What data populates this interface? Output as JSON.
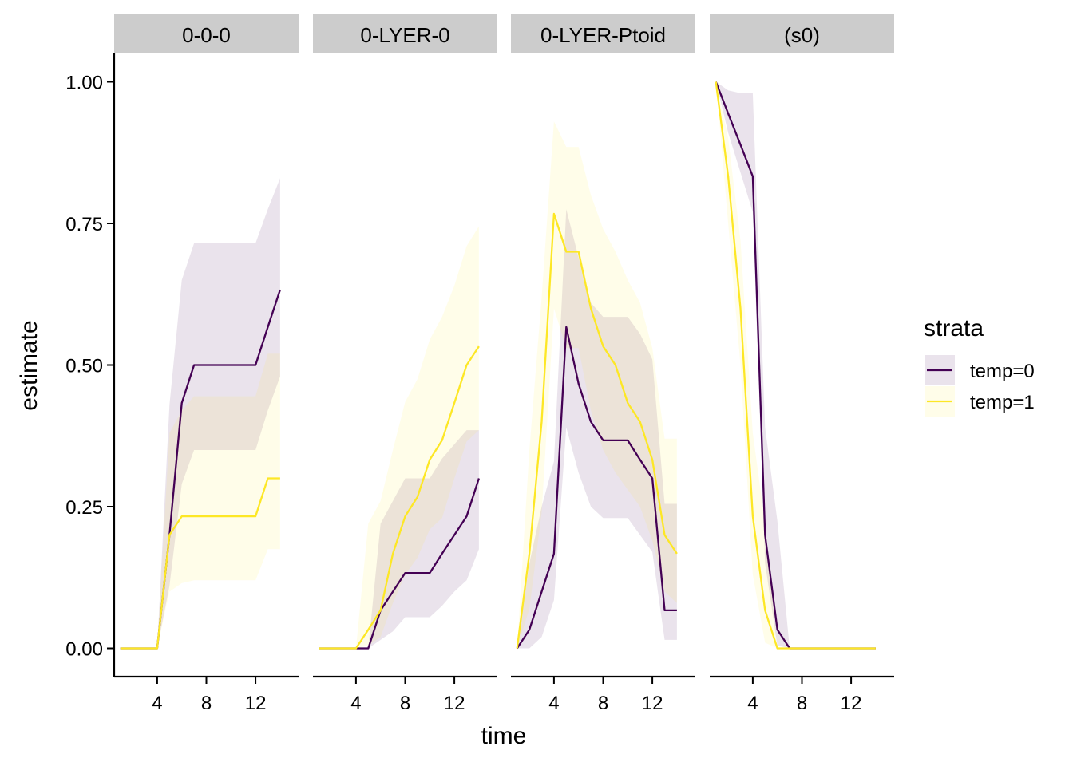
{
  "chart_data": {
    "type": "line",
    "xlabel": "time",
    "ylabel": "estimate",
    "xlim": [
      0.5,
      15.5
    ],
    "ylim": [
      -0.05,
      1.05
    ],
    "x_ticks": [
      4,
      8,
      12
    ],
    "x_tick_labels": [
      "4",
      "8",
      "12"
    ],
    "y_ticks": [
      0,
      0.25,
      0.5,
      0.75,
      1.0
    ],
    "y_tick_labels": [
      "0.00",
      "0.25",
      "0.50",
      "0.75",
      "1.00"
    ],
    "grid": false,
    "colors": {
      "temp0": "#440154",
      "temp1": "#FDE725",
      "strip_bg": "#CCCCCC"
    },
    "legend": {
      "title": "strata",
      "position": "right",
      "entries": [
        "temp=0",
        "temp=1"
      ]
    },
    "panels": [
      {
        "title": "0-0-0",
        "series": [
          {
            "name": "temp=0",
            "x": [
              1,
              2,
              3,
              4,
              5,
              6,
              7,
              8,
              9,
              10,
              11,
              12,
              13,
              14
            ],
            "y": [
              0,
              0,
              0,
              0,
              0.2,
              0.433,
              0.5,
              0.5,
              0.5,
              0.5,
              0.5,
              0.5,
              0.567,
              0.633
            ],
            "lower": [
              0,
              0,
              0,
              0,
              0.11,
              0.29,
              0.35,
              0.35,
              0.35,
              0.35,
              0.35,
              0.35,
              0.42,
              0.48
            ],
            "upper": [
              0,
              0,
              0,
              0,
              0.43,
              0.65,
              0.715,
              0.715,
              0.715,
              0.715,
              0.715,
              0.715,
              0.775,
              0.83
            ]
          },
          {
            "name": "temp=1",
            "x": [
              1,
              2,
              3,
              4,
              5,
              6,
              7,
              8,
              9,
              10,
              11,
              12,
              13,
              14
            ],
            "y": [
              0,
              0,
              0,
              0,
              0.2,
              0.233,
              0.233,
              0.233,
              0.233,
              0.233,
              0.233,
              0.233,
              0.3,
              0.3
            ],
            "lower": [
              0,
              0,
              0,
              0,
              0.1,
              0.115,
              0.12,
              0.12,
              0.12,
              0.12,
              0.12,
              0.12,
              0.175,
              0.175
            ],
            "upper": [
              0,
              0,
              0,
              0,
              0.38,
              0.42,
              0.445,
              0.445,
              0.445,
              0.445,
              0.445,
              0.445,
              0.52,
              0.52
            ]
          }
        ]
      },
      {
        "title": "0-LYER-0",
        "series": [
          {
            "name": "temp=0",
            "x": [
              1,
              2,
              3,
              4,
              5,
              6,
              7,
              8,
              9,
              10,
              11,
              12,
              13,
              14
            ],
            "y": [
              0,
              0,
              0,
              0,
              0,
              0.067,
              0.1,
              0.133,
              0.133,
              0.133,
              0.167,
              0.2,
              0.233,
              0.3
            ],
            "lower": [
              0,
              0,
              0,
              0,
              0,
              0.015,
              0.03,
              0.055,
              0.055,
              0.055,
              0.075,
              0.1,
              0.12,
              0.175
            ],
            "upper": [
              0,
              0,
              0,
              0,
              0,
              0.22,
              0.26,
              0.3,
              0.3,
              0.3,
              0.335,
              0.36,
              0.385,
              0.385
            ]
          },
          {
            "name": "temp=1",
            "x": [
              1,
              2,
              3,
              4,
              5,
              6,
              7,
              8,
              9,
              10,
              11,
              12,
              13,
              14
            ],
            "y": [
              0,
              0,
              0,
              0,
              0.033,
              0.067,
              0.167,
              0.233,
              0.267,
              0.333,
              0.367,
              0.433,
              0.5,
              0.533
            ],
            "lower": [
              0,
              0,
              0,
              0,
              0.005,
              0.02,
              0.08,
              0.13,
              0.16,
              0.21,
              0.23,
              0.3,
              0.365,
              0.385
            ],
            "upper": [
              0,
              0,
              0,
              0,
              0.22,
              0.26,
              0.35,
              0.435,
              0.475,
              0.545,
              0.585,
              0.64,
              0.71,
              0.745
            ]
          }
        ]
      },
      {
        "title": "0-LYER-Ptoid",
        "series": [
          {
            "name": "temp=0",
            "x": [
              1,
              2,
              3,
              4,
              5,
              6,
              7,
              8,
              9,
              10,
              11,
              12,
              13,
              14
            ],
            "y": [
              0,
              0.033,
              0.1,
              0.167,
              0.567,
              0.467,
              0.4,
              0.367,
              0.367,
              0.367,
              0.333,
              0.3,
              0.067,
              0.067
            ],
            "lower": [
              0,
              0,
              0.02,
              0.085,
              0.39,
              0.31,
              0.25,
              0.23,
              0.23,
              0.23,
              0.2,
              0.17,
              0.015,
              0.015
            ],
            "upper": [
              0,
              0.15,
              0.25,
              0.33,
              0.775,
              0.69,
              0.61,
              0.585,
              0.585,
              0.585,
              0.555,
              0.51,
              0.255,
              0.255
            ]
          },
          {
            "name": "temp=1",
            "x": [
              1,
              2,
              3,
              4,
              5,
              6,
              7,
              8,
              9,
              10,
              11,
              12,
              13,
              14
            ],
            "y": [
              0,
              0.167,
              0.4,
              0.767,
              0.7,
              0.7,
              0.6,
              0.533,
              0.5,
              0.433,
              0.4,
              0.333,
              0.2,
              0.167
            ],
            "lower": [
              0,
              0.07,
              0.24,
              0.6,
              0.53,
              0.53,
              0.42,
              0.35,
              0.31,
              0.28,
              0.25,
              0.19,
              0.1,
              0.08
            ],
            "upper": [
              0,
              0.35,
              0.62,
              0.93,
              0.885,
              0.885,
              0.8,
              0.74,
              0.7,
              0.65,
              0.61,
              0.53,
              0.37,
              0.37
            ]
          }
        ]
      },
      {
        "title": "(s0)",
        "series": [
          {
            "name": "temp=0",
            "x": [
              1,
              2,
              3,
              4,
              5,
              6,
              7,
              8,
              9,
              10,
              11,
              12,
              13,
              14
            ],
            "y": [
              1.0,
              0.944,
              0.889,
              0.833,
              0.2,
              0.033,
              0,
              0,
              0,
              0,
              0,
              0,
              0,
              0
            ],
            "lower": [
              1.0,
              0.91,
              0.84,
              0.77,
              0.15,
              0.005,
              0,
              0,
              0,
              0,
              0,
              0,
              0,
              0
            ],
            "upper": [
              1.0,
              0.985,
              0.98,
              0.98,
              0.39,
              0.225,
              0,
              0,
              0,
              0,
              0,
              0,
              0,
              0
            ]
          },
          {
            "name": "temp=1",
            "x": [
              1,
              2,
              3,
              4,
              5,
              6,
              7,
              8,
              9,
              10,
              11,
              12,
              13,
              14
            ],
            "y": [
              1.0,
              0.833,
              0.6,
              0.233,
              0.067,
              0,
              0,
              0,
              0,
              0,
              0,
              0,
              0,
              0
            ],
            "lower": [
              1.0,
              0.75,
              0.5,
              0.13,
              0.01,
              0,
              0,
              0,
              0,
              0,
              0,
              0,
              0,
              0
            ],
            "upper": [
              1.0,
              0.9,
              0.72,
              0.38,
              0.22,
              0,
              0,
              0,
              0,
              0,
              0,
              0,
              0,
              0
            ]
          }
        ]
      }
    ]
  }
}
